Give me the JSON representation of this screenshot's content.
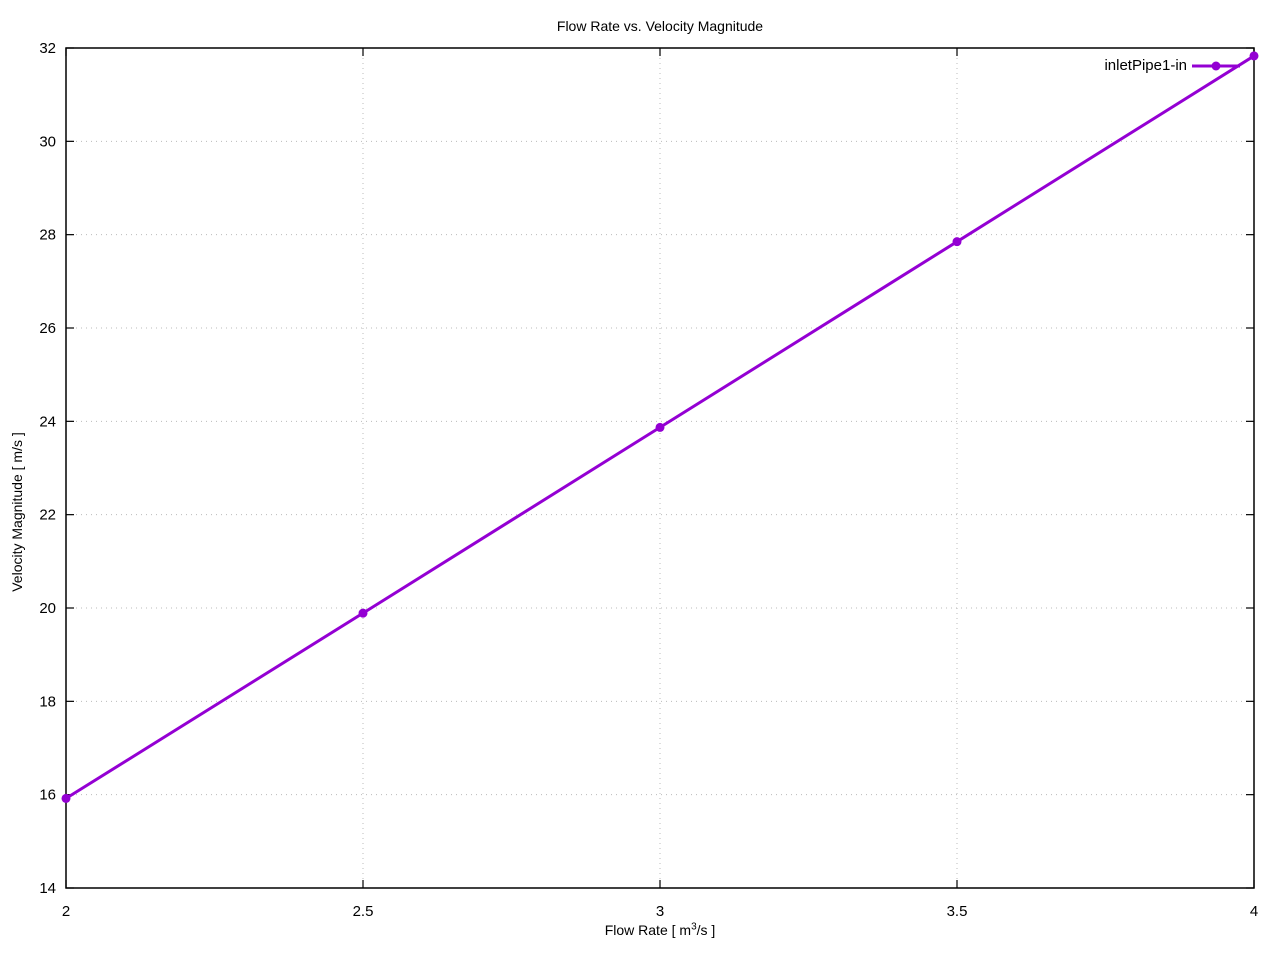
{
  "chart_data": {
    "type": "line",
    "title": "Flow Rate vs. Velocity Magnitude",
    "xlabel": {
      "pre": "Flow Rate [ m",
      "sup": "3",
      "post": "/s ]"
    },
    "ylabel": "Velocity Magnitude [ m/s ]",
    "xlim": [
      2,
      4
    ],
    "ylim": [
      14,
      32
    ],
    "xticks": {
      "values": [
        2,
        2.5,
        3,
        3.5,
        4
      ],
      "labels": [
        "2",
        "2.5",
        "3",
        "3.5",
        "4"
      ]
    },
    "yticks": {
      "values": [
        14,
        16,
        18,
        20,
        22,
        24,
        26,
        28,
        30,
        32
      ],
      "labels": [
        "14",
        "16",
        "18",
        "20",
        "22",
        "24",
        "26",
        "28",
        "30",
        "32"
      ]
    },
    "grid": "dotted",
    "legend_position": "top-right-inside",
    "series": [
      {
        "name": "inletPipe1-in",
        "color": "#9400d3",
        "marker": "filled-circle",
        "x": [
          2,
          2.5,
          3,
          3.5,
          4
        ],
        "y": [
          15.92,
          19.89,
          23.87,
          27.85,
          31.83
        ]
      }
    ],
    "colors": {
      "axis": "#000000",
      "grid": "#bbbbbb",
      "background": "#ffffff",
      "text": "#000000"
    }
  }
}
